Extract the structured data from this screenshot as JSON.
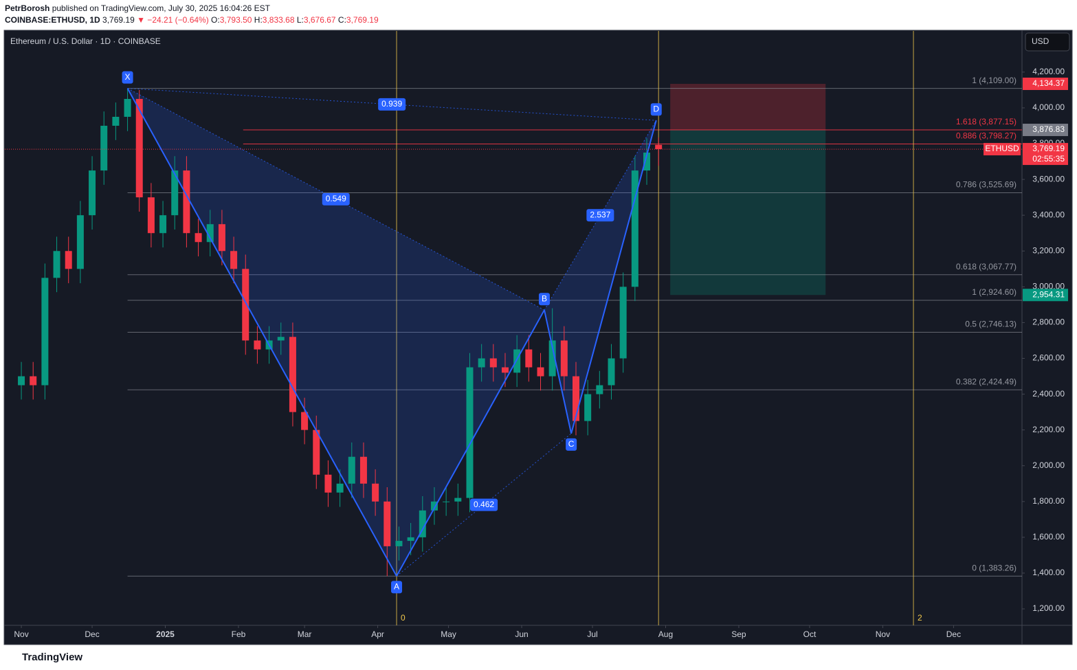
{
  "header": {
    "publisher": "PetrBorosh",
    "published": "published on TradingView.com, July 30, 2025 16:04:26 EST",
    "symbol": "COINBASE:ETHUSD, 1D",
    "last": "3,769.19",
    "change": "▼ −24.21 (−0.64%)",
    "ohlc": [
      [
        "O:",
        "3,793.50"
      ],
      [
        "H:",
        "3,833.68"
      ],
      [
        "L:",
        "3,676.67"
      ],
      [
        "C:",
        "3,769.19"
      ]
    ]
  },
  "currency": "USD",
  "brand": "TradingView",
  "chart_data": {
    "type": "candlestick",
    "title": "Ethereum / U.S. Dollar · 1D · COINBASE",
    "x": [
      0,
      5,
      10,
      15,
      20,
      25,
      30,
      35,
      40,
      45,
      50,
      55,
      60,
      65,
      70,
      75,
      80,
      85,
      90,
      95,
      100,
      105,
      110,
      115,
      120,
      125,
      130,
      135,
      140,
      145,
      150,
      155,
      160,
      165,
      170,
      175,
      180,
      185,
      190,
      195,
      200,
      205,
      210,
      215,
      220,
      225,
      230,
      235,
      240,
      245,
      250,
      255,
      260,
      265,
      270
    ],
    "open": [
      2450,
      2500,
      2450,
      3050,
      3200,
      3100,
      3400,
      3650,
      3900,
      3950,
      4050,
      3500,
      3300,
      3400,
      3650,
      3300,
      3250,
      3350,
      3200,
      3100,
      2700,
      2650,
      2700,
      2720,
      2300,
      2200,
      1950,
      1850,
      1900,
      2050,
      1900,
      1800,
      1550,
      1580,
      1600,
      1750,
      1800,
      1800,
      1820,
      2550,
      2600,
      2550,
      2520,
      2650,
      2550,
      2500,
      2700,
      2500,
      2250,
      2400,
      2450,
      2600,
      3000,
      3650,
      3793.5
    ],
    "high": [
      2580,
      2580,
      3130,
      3280,
      3280,
      3480,
      3730,
      3980,
      4030,
      4109,
      4100,
      3580,
      3480,
      3730,
      3730,
      3380,
      3430,
      3430,
      3280,
      3180,
      2780,
      2780,
      2800,
      2800,
      2380,
      2280,
      2030,
      1980,
      2130,
      2130,
      1980,
      1880,
      1660,
      1680,
      1830,
      1880,
      1880,
      1900,
      2630,
      2680,
      2680,
      2630,
      2730,
      2730,
      2630,
      2880,
      2780,
      2580,
      2480,
      2530,
      2680,
      3080,
      3730,
      3830,
      3833.68
    ],
    "low": [
      2370,
      2370,
      2370,
      2970,
      3020,
      3020,
      3320,
      3570,
      3820,
      3870,
      3420,
      3220,
      3220,
      3320,
      3220,
      3170,
      3170,
      3120,
      3020,
      2620,
      2570,
      2570,
      2620,
      2220,
      2120,
      1870,
      1770,
      1770,
      1820,
      1820,
      1720,
      1383.26,
      1470,
      1500,
      1520,
      1670,
      1720,
      1720,
      1740,
      2470,
      2470,
      2440,
      2440,
      2470,
      2420,
      2420,
      2420,
      2170,
      2170,
      2320,
      2370,
      2520,
      2920,
      3570,
      3676.67
    ],
    "close": [
      2500,
      2450,
      3050,
      3200,
      3100,
      3400,
      3650,
      3900,
      3950,
      4050,
      3500,
      3300,
      3400,
      3650,
      3300,
      3250,
      3350,
      3200,
      3100,
      2700,
      2650,
      2700,
      2720,
      2300,
      2200,
      1950,
      1850,
      1900,
      2050,
      1900,
      1800,
      1550,
      1580,
      1600,
      1750,
      1800,
      1800,
      1820,
      2550,
      2600,
      2550,
      2520,
      2650,
      2550,
      2500,
      2700,
      2500,
      2250,
      2400,
      2450,
      2600,
      3000,
      3650,
      3750,
      3769.19
    ],
    "up_color": "#089981",
    "down_color": "#f23645",
    "xlim": [
      -7,
      424
    ],
    "xticks": [
      {
        "value": 0,
        "label": "Nov"
      },
      {
        "value": 30,
        "label": "Dec"
      },
      {
        "value": 61,
        "label": "2025"
      },
      {
        "value": 92,
        "label": "Feb"
      },
      {
        "value": 120,
        "label": "Mar"
      },
      {
        "value": 151,
        "label": "Apr"
      },
      {
        "value": 181,
        "label": "May"
      },
      {
        "value": 212,
        "label": "Jun"
      },
      {
        "value": 242,
        "label": "Jul"
      },
      {
        "value": 273,
        "label": "Aug"
      },
      {
        "value": 304,
        "label": "Sep"
      },
      {
        "value": 334,
        "label": "Oct"
      },
      {
        "value": 365,
        "label": "Nov"
      },
      {
        "value": 395,
        "label": "Dec"
      }
    ],
    "ylim": [
      1108,
      4430
    ],
    "yticks": [
      {
        "value": 1200,
        "label": "1,200.00"
      },
      {
        "value": 1400,
        "label": "1,400.00"
      },
      {
        "value": 1600,
        "label": "1,600.00"
      },
      {
        "value": 1800,
        "label": "1,800.00"
      },
      {
        "value": 2000,
        "label": "2,000.00"
      },
      {
        "value": 2200,
        "label": "2,200.00"
      },
      {
        "value": 2400,
        "label": "2,400.00"
      },
      {
        "value": 2600,
        "label": "2,600.00"
      },
      {
        "value": 2800,
        "label": "2,800.00"
      },
      {
        "value": 3000,
        "label": "3,000.00"
      },
      {
        "value": 3200,
        "label": "3,200.00"
      },
      {
        "value": 3400,
        "label": "3,400.00"
      },
      {
        "value": 3600,
        "label": "3,600.00"
      },
      {
        "value": 3800,
        "label": "3,800.00"
      },
      {
        "value": 4000,
        "label": "4,000.00"
      },
      {
        "value": 4200,
        "label": "4,200.00"
      }
    ],
    "pattern": [
      {
        "label": "X",
        "x": 45,
        "y": 4109
      },
      {
        "label": "A",
        "x": 159,
        "y": 1383.26
      },
      {
        "label": "B",
        "x": 221.6,
        "y": 2870
      },
      {
        "label": "C",
        "x": 233,
        "y": 2180
      },
      {
        "label": "D",
        "x": 269,
        "y": 3930
      }
    ],
    "ratios": [
      0.549,
      0.939,
      0.462,
      2.537
    ],
    "fib": [
      {
        "label": "1 (4,109.00)",
        "value": 4109,
        "color": "#9598a1"
      },
      {
        "label": "1.618 (3,877.15)",
        "value": 3877.15,
        "color": "#f23645"
      },
      {
        "label": "0.886 (3,798.27)",
        "value": 3798.27,
        "color": "#f23645"
      },
      {
        "label": "0.786 (3,525.69)",
        "value": 3525.69,
        "color": "#9598a1"
      },
      {
        "label": "0.618 (3,067.77)",
        "value": 3067.77,
        "color": "#9598a1"
      },
      {
        "label": "1 (2,924.60)",
        "value": 2924.6,
        "color": "#9598a1"
      },
      {
        "label": "0.5 (2,746.13)",
        "value": 2746.13,
        "color": "#9598a1"
      },
      {
        "label": "0.382 (2,424.49)",
        "value": 2424.49,
        "color": "#9598a1"
      },
      {
        "label": "0 (1,383.26)",
        "value": 1383.26,
        "color": "#9598a1"
      }
    ],
    "vlines": [
      {
        "x": 159,
        "label": "0"
      },
      {
        "x": 378,
        "label": "2"
      }
    ],
    "position": {
      "stop": {
        "value": 4134.37,
        "label": "4,134.37"
      },
      "entry": {
        "value": 3876.83,
        "label": "3,876.83"
      },
      "target": {
        "value": 2954.31,
        "label": "2,954.31"
      }
    },
    "last_price": {
      "symbol": "ETHUSD",
      "value": 3769.19,
      "label": "3,769.19",
      "countdown": "02:55:35"
    }
  }
}
